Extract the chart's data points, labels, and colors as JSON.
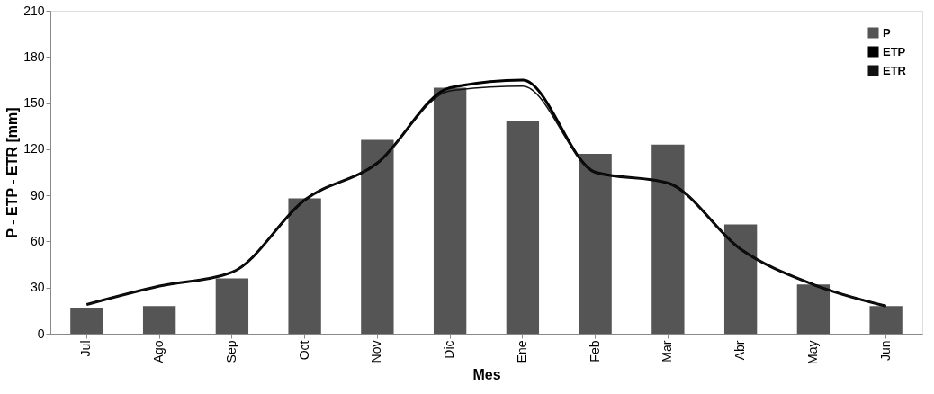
{
  "chart_data": {
    "type": "bar",
    "xlabel": "Mes",
    "ylabel": "P - ETP - ETR [mm]",
    "categories": [
      "Jul",
      "Ago",
      "Sep",
      "Oct",
      "Nov",
      "Dic",
      "Ene",
      "Feb",
      "Mar",
      "Abr",
      "May",
      "Jun"
    ],
    "series": [
      {
        "name": "P",
        "color": "#555555",
        "values": [
          17,
          18,
          36,
          88,
          126,
          160,
          138,
          117,
          123,
          71,
          32,
          18
        ]
      },
      {
        "name": "ETP",
        "type": "line",
        "color": "#000000",
        "values": [
          19,
          31,
          40,
          87,
          111,
          160,
          165,
          105,
          98,
          55,
          32,
          18
        ]
      },
      {
        "name": "ETR",
        "type": "line",
        "color": "#111111",
        "values": [
          19,
          31,
          40,
          87,
          111,
          158,
          161,
          105,
          98,
          55,
          32,
          18
        ]
      }
    ],
    "ylim": [
      0,
      210
    ],
    "yticks": [
      0,
      30,
      60,
      90,
      120,
      150,
      180,
      210
    ],
    "grid": false,
    "legend": "top right",
    "line_style": "solid",
    "marker": "none"
  }
}
